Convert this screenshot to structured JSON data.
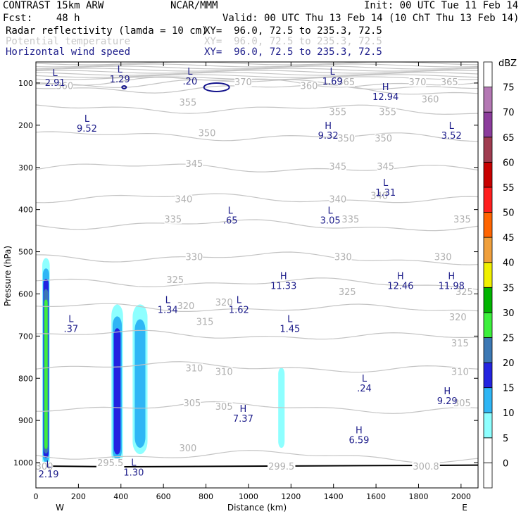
{
  "header": {
    "line1_left": "CONTRAST 15km ARW",
    "line1_mid": "NCAR/MMM",
    "line1_right": "Init: 00 UTC Tue 11 Feb 14",
    "line2_left": "Fcst:    48 h",
    "line2_right": "Valid: 00 UTC Thu 13 Feb 14 (10 ChT Thu 13 Feb 14)",
    "fields": [
      {
        "name": "Radar reflectivity (lamda = 10 cm)",
        "xy": "XY=  96.0, 72.5 to 235.3, 72.5",
        "color": "#000000"
      },
      {
        "name": "Potential temperature",
        "xy": "XY=  96.0, 72.5 to 235.3, 72.5",
        "color": "#c8c8c8"
      },
      {
        "name": "Horizontal wind speed",
        "xy": "XY=  96.0, 72.5 to 235.3, 72.5",
        "color": "#1c1c8a"
      }
    ]
  },
  "chart_data": {
    "type": "cross-section",
    "xlabel": "Distance (km)",
    "ylabel": "Pressure (hPa)",
    "xlim": [
      0,
      2080
    ],
    "ylim": [
      1060,
      50
    ],
    "x_ticks": [
      0,
      200,
      400,
      600,
      800,
      1000,
      1200,
      1400,
      1600,
      1800,
      2000
    ],
    "y_ticks": [
      100,
      200,
      300,
      400,
      500,
      600,
      700,
      800,
      900,
      1000
    ],
    "x_end_labels": {
      "left": "W",
      "right": "E"
    },
    "colorbar": {
      "unit": "dBZ",
      "levels": [
        0,
        5,
        10,
        15,
        20,
        25,
        30,
        35,
        40,
        45,
        50,
        55,
        60,
        65,
        70,
        75
      ],
      "colors": [
        "#ffffff",
        "#ffffff",
        "#8effff",
        "#2fb6f5",
        "#2323e0",
        "#3c78b4",
        "#3cf03c",
        "#00b400",
        "#f0f000",
        "#f0a03c",
        "#ff6400",
        "#ff1e1e",
        "#c80000",
        "#a03c50",
        "#8c3c9c",
        "#b478b4",
        "#ffffff"
      ]
    },
    "theta_labels": [
      {
        "text": "370",
        "x": 975,
        "p": 97
      },
      {
        "text": "360",
        "x": 135,
        "p": 106
      },
      {
        "text": "360",
        "x": 1285,
        "p": 106
      },
      {
        "text": "365",
        "x": 1460,
        "p": 97
      },
      {
        "text": "370",
        "x": 1795,
        "p": 97
      },
      {
        "text": "365",
        "x": 1945,
        "p": 97
      },
      {
        "text": "360",
        "x": 1855,
        "p": 138
      },
      {
        "text": "355",
        "x": 715,
        "p": 145
      },
      {
        "text": "355",
        "x": 1420,
        "p": 168
      },
      {
        "text": "355",
        "x": 1655,
        "p": 168
      },
      {
        "text": "350",
        "x": 805,
        "p": 218
      },
      {
        "text": "350",
        "x": 1460,
        "p": 230
      },
      {
        "text": "350",
        "x": 1635,
        "p": 230
      },
      {
        "text": "345",
        "x": 745,
        "p": 290
      },
      {
        "text": "345",
        "x": 1420,
        "p": 297
      },
      {
        "text": "345",
        "x": 1645,
        "p": 297
      },
      {
        "text": "340",
        "x": 695,
        "p": 375
      },
      {
        "text": "340",
        "x": 1420,
        "p": 375
      },
      {
        "text": "340",
        "x": 1615,
        "p": 366
      },
      {
        "text": "335",
        "x": 645,
        "p": 422
      },
      {
        "text": "335",
        "x": 1480,
        "p": 422
      },
      {
        "text": "335",
        "x": 2005,
        "p": 422
      },
      {
        "text": "330",
        "x": 745,
        "p": 512
      },
      {
        "text": "330",
        "x": 1445,
        "p": 512
      },
      {
        "text": "330",
        "x": 1915,
        "p": 512
      },
      {
        "text": "325",
        "x": 655,
        "p": 566
      },
      {
        "text": "325",
        "x": 1465,
        "p": 594
      },
      {
        "text": "325",
        "x": 2015,
        "p": 594
      },
      {
        "text": "320",
        "x": 705,
        "p": 628
      },
      {
        "text": "320",
        "x": 885,
        "p": 619
      },
      {
        "text": "320",
        "x": 1985,
        "p": 654
      },
      {
        "text": "315",
        "x": 795,
        "p": 665
      },
      {
        "text": "315",
        "x": 1995,
        "p": 716
      },
      {
        "text": "310",
        "x": 745,
        "p": 775
      },
      {
        "text": "310",
        "x": 885,
        "p": 784
      },
      {
        "text": "310",
        "x": 1995,
        "p": 784
      },
      {
        "text": "305",
        "x": 735,
        "p": 858
      },
      {
        "text": "305",
        "x": 885,
        "p": 866
      },
      {
        "text": "305",
        "x": 2005,
        "p": 858
      },
      {
        "text": "300",
        "x": 715,
        "p": 965
      },
      {
        "text": "295.5",
        "x": 350,
        "p": 1000
      },
      {
        "text": "299.5",
        "x": 1155,
        "p": 1008
      },
      {
        "text": "300.8",
        "x": 1835,
        "p": 1008
      },
      {
        "text": "300",
        "x": 40,
        "p": 1008
      }
    ],
    "wind_extrema": [
      {
        "type": "L",
        "value": "2.91",
        "x": 90,
        "p": 83
      },
      {
        "type": "L",
        "value": "1.29",
        "x": 395,
        "p": 75
      },
      {
        "type": "L",
        "value": ".20",
        "x": 725,
        "p": 80
      },
      {
        "type": "L",
        "value": "1.69",
        "x": 1395,
        "p": 80
      },
      {
        "type": "H",
        "value": "12.94",
        "x": 1645,
        "p": 117
      },
      {
        "type": "L",
        "value": "9.52",
        "x": 240,
        "p": 192
      },
      {
        "type": "H",
        "value": "9.32",
        "x": 1375,
        "p": 209
      },
      {
        "type": "L",
        "value": "3.52",
        "x": 1955,
        "p": 209
      },
      {
        "type": "L",
        "value": "1.31",
        "x": 1645,
        "p": 344
      },
      {
        "type": "L",
        "value": ".65",
        "x": 915,
        "p": 410
      },
      {
        "type": "L",
        "value": "3.05",
        "x": 1385,
        "p": 410
      },
      {
        "type": "H",
        "value": "11.33",
        "x": 1165,
        "p": 565
      },
      {
        "type": "H",
        "value": "12.46",
        "x": 1715,
        "p": 565
      },
      {
        "type": "H",
        "value": "11.98",
        "x": 1955,
        "p": 565
      },
      {
        "type": "L",
        "value": "1.34",
        "x": 620,
        "p": 622
      },
      {
        "type": "L",
        "value": "1.62",
        "x": 955,
        "p": 622
      },
      {
        "type": "L",
        "value": ".37",
        "x": 165,
        "p": 667
      },
      {
        "type": "L",
        "value": "1.45",
        "x": 1195,
        "p": 667
      },
      {
        "type": "L",
        "value": ".24",
        "x": 1545,
        "p": 808
      },
      {
        "type": "H",
        "value": "9.29",
        "x": 1935,
        "p": 838
      },
      {
        "type": "H",
        "value": "7.37",
        "x": 975,
        "p": 880
      },
      {
        "type": "H",
        "value": "6.59",
        "x": 1520,
        "p": 931
      },
      {
        "type": "L",
        "value": "1.30",
        "x": 460,
        "p": 1007
      },
      {
        "type": "L",
        "value": "2.19",
        "x": 60,
        "p": 1012
      }
    ],
    "reflectivity_cells": [
      {
        "x": [
          30,
          65
        ],
        "p": [
          1010,
          515
        ],
        "max_dbz": 30
      },
      {
        "x": [
          355,
          410
        ],
        "p": [
          1005,
          625
        ],
        "max_dbz": 20
      },
      {
        "x": [
          455,
          525
        ],
        "p": [
          980,
          625
        ],
        "max_dbz": 15
      },
      {
        "x": [
          1140,
          1170
        ],
        "p": [
          965,
          775
        ],
        "max_dbz": 10
      }
    ]
  }
}
